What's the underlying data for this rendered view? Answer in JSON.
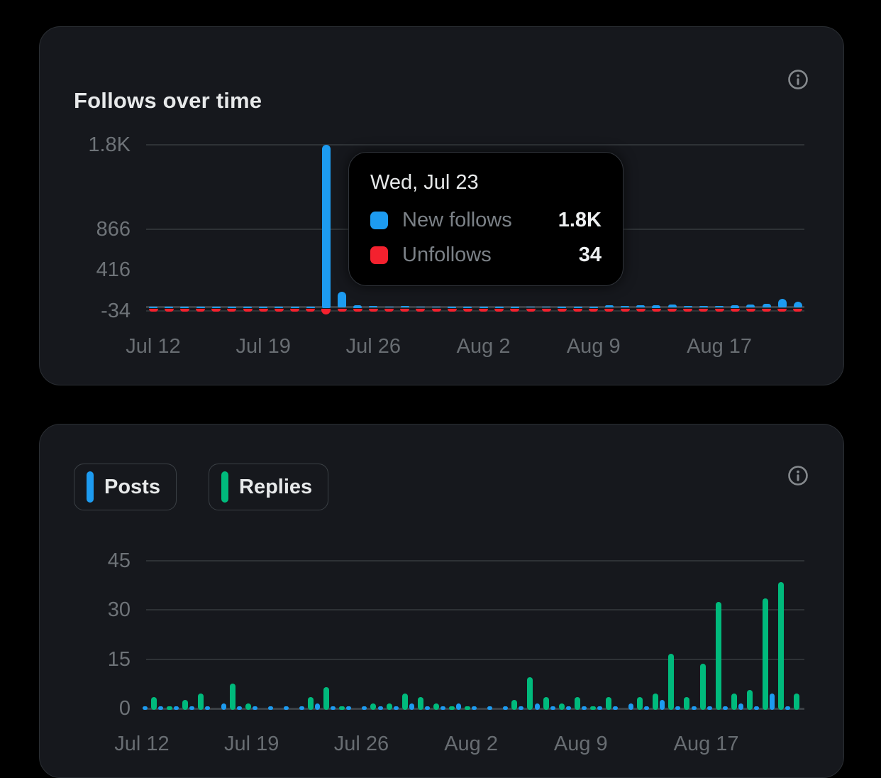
{
  "colors": {
    "background": "#000000",
    "card_bg": "#16181d",
    "blue": "#1d9bf0",
    "red": "#f4212e",
    "green": "#00ba7c",
    "text_primary": "#e7e9ea",
    "text_secondary": "#6e7378",
    "gridline": "#2e3236"
  },
  "follows_card": {
    "title": "Follows over time",
    "info_icon": "info-circle-icon",
    "tooltip": {
      "date": "Wed, Jul 23",
      "rows": [
        {
          "label": "New follows",
          "value": "1.8K",
          "color": "#1d9bf0"
        },
        {
          "label": "Unfollows",
          "value": "34",
          "color": "#f4212e"
        }
      ]
    }
  },
  "posts_card": {
    "info_icon": "info-circle-icon",
    "legend": [
      {
        "label": "Posts",
        "color": "#1d9bf0"
      },
      {
        "label": "Replies",
        "color": "#00ba7c"
      }
    ]
  },
  "chart_data": [
    {
      "type": "bar",
      "title": "Follows over time",
      "x": [
        "Jul 12",
        "Jul 13",
        "Jul 14",
        "Jul 15",
        "Jul 16",
        "Jul 17",
        "Jul 18",
        "Jul 19",
        "Jul 20",
        "Jul 21",
        "Jul 22",
        "Jul 23",
        "Jul 24",
        "Jul 25",
        "Jul 26",
        "Jul 27",
        "Jul 28",
        "Jul 29",
        "Jul 30",
        "Jul 31",
        "Aug 1",
        "Aug 2",
        "Aug 3",
        "Aug 4",
        "Aug 5",
        "Aug 6",
        "Aug 7",
        "Aug 8",
        "Aug 9",
        "Aug 10",
        "Aug 11",
        "Aug 12",
        "Aug 13",
        "Aug 14",
        "Aug 15",
        "Aug 16",
        "Aug 17",
        "Aug 18",
        "Aug 19",
        "Aug 20",
        "Aug 21",
        "Aug 22"
      ],
      "series": [
        {
          "name": "New follows",
          "color": "#1d9bf0",
          "values": [
            5,
            4,
            5,
            6,
            4,
            8,
            5,
            4,
            5,
            6,
            8,
            1800,
            180,
            25,
            20,
            14,
            16,
            15,
            12,
            8,
            10,
            8,
            6,
            10,
            15,
            12,
            8,
            10,
            8,
            28,
            22,
            30,
            25,
            32,
            22,
            18,
            22,
            25,
            35,
            45,
            95,
            70
          ]
        },
        {
          "name": "Unfollows",
          "color": "#f4212e",
          "values": [
            -6,
            -4,
            -5,
            -6,
            -4,
            -6,
            -5,
            -4,
            -5,
            -6,
            -8,
            -34,
            -15,
            -12,
            -10,
            -8,
            -10,
            -8,
            -8,
            -6,
            -8,
            -6,
            -5,
            -8,
            -8,
            -8,
            -6,
            -8,
            -6,
            -8,
            -6,
            -8,
            -8,
            -10,
            -8,
            -8,
            -8,
            -8,
            -10,
            -10,
            -12,
            -10
          ]
        }
      ],
      "highlighted_day": "Jul 23",
      "y_ticks": [
        {
          "label": "1.8K",
          "value": 1800,
          "line": true
        },
        {
          "label": "866",
          "value": 866,
          "line": true
        },
        {
          "label": "416",
          "value": 416,
          "line": false
        },
        {
          "label": "-34",
          "value": -34,
          "line": true
        }
      ],
      "x_tick_labels": [
        "Jul 12",
        "Jul 19",
        "Jul 26",
        "Aug 2",
        "Aug 9",
        "Aug 17"
      ],
      "x_tick_days": [
        0,
        7,
        14,
        21,
        28,
        36
      ],
      "ylim": [
        -34,
        1800
      ],
      "grid": true,
      "legend_position": "tooltip"
    },
    {
      "type": "bar",
      "title": "Posts and Replies",
      "x": [
        "Jul 12",
        "Jul 13",
        "Jul 14",
        "Jul 15",
        "Jul 16",
        "Jul 17",
        "Jul 18",
        "Jul 19",
        "Jul 20",
        "Jul 21",
        "Jul 22",
        "Jul 23",
        "Jul 24",
        "Jul 25",
        "Jul 26",
        "Jul 27",
        "Jul 28",
        "Jul 29",
        "Jul 30",
        "Jul 31",
        "Aug 1",
        "Aug 2",
        "Aug 3",
        "Aug 4",
        "Aug 5",
        "Aug 6",
        "Aug 7",
        "Aug 8",
        "Aug 9",
        "Aug 10",
        "Aug 11",
        "Aug 12",
        "Aug 13",
        "Aug 14",
        "Aug 15",
        "Aug 16",
        "Aug 17",
        "Aug 18",
        "Aug 19",
        "Aug 20",
        "Aug 21",
        "Aug 22"
      ],
      "series": [
        {
          "name": "Posts",
          "color": "#1d9bf0",
          "values": [
            1,
            1,
            1,
            1,
            1,
            2,
            1,
            1,
            1,
            1,
            1,
            2,
            1,
            1,
            1,
            1,
            1,
            2,
            1,
            1,
            2,
            1,
            1,
            1,
            1,
            2,
            1,
            1,
            1,
            1,
            1,
            2,
            1,
            3,
            1,
            1,
            1,
            1,
            2,
            1,
            5,
            1
          ]
        },
        {
          "name": "Replies",
          "color": "#00ba7c",
          "values": [
            4,
            1,
            3,
            5,
            0,
            8,
            2,
            0,
            0,
            0,
            4,
            7,
            1,
            0,
            2,
            2,
            5,
            4,
            2,
            1,
            1,
            0,
            0,
            3,
            10,
            4,
            2,
            4,
            1,
            4,
            0,
            4,
            5,
            17,
            4,
            14,
            33,
            5,
            6,
            34,
            39,
            5
          ]
        }
      ],
      "y_ticks": [
        {
          "label": "45",
          "value": 45,
          "line": true
        },
        {
          "label": "30",
          "value": 30,
          "line": true
        },
        {
          "label": "15",
          "value": 15,
          "line": true
        },
        {
          "label": "0",
          "value": 0,
          "line": false
        }
      ],
      "x_tick_labels": [
        "Jul 12",
        "Jul 19",
        "Jul 26",
        "Aug 2",
        "Aug 9",
        "Aug 17"
      ],
      "x_tick_days": [
        0,
        7,
        14,
        21,
        28,
        36
      ],
      "ylim": [
        0,
        45
      ],
      "grid": true,
      "legend_position": "top-left-chips"
    }
  ]
}
